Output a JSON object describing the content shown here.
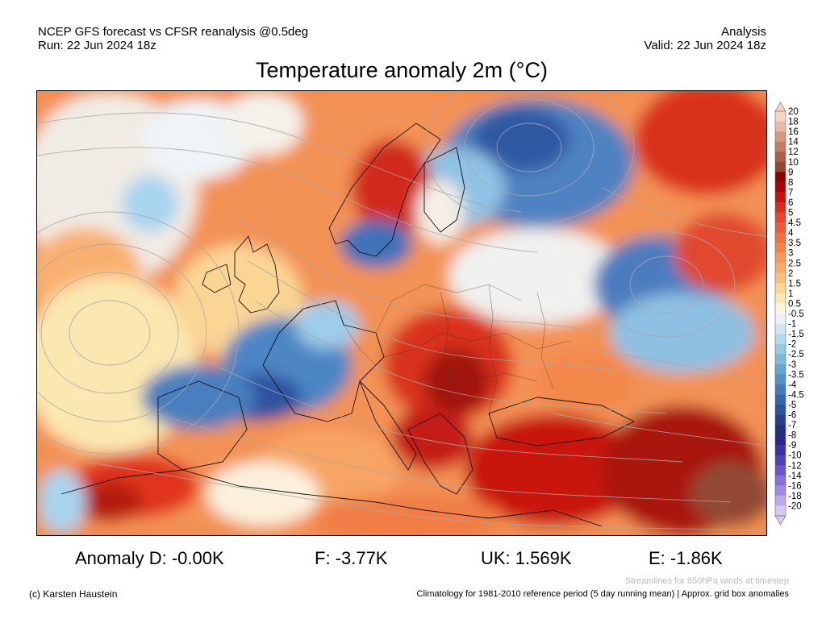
{
  "header": {
    "left_line1": "NCEP GFS forecast vs CFSR reanalysis @0.5deg",
    "left_line2": "Run: 22 Jun 2024 18z",
    "right_line1": "Analysis",
    "right_line2": "Valid: 22 Jun 2024 18z"
  },
  "title": "Temperature anomaly 2m (°C)",
  "colorbar": {
    "labels": [
      "20",
      "18",
      "16",
      "14",
      "12",
      "10",
      "9",
      "8",
      "7",
      "6",
      "5",
      "4.5",
      "4",
      "3.5",
      "3",
      "2.5",
      "2",
      "1.5",
      "1",
      "0.5",
      "-0.5",
      "-1",
      "-1.5",
      "-2",
      "-2.5",
      "-3",
      "-3.5",
      "-4",
      "-4.5",
      "-5",
      "-6",
      "-7",
      "-8",
      "-9",
      "-10",
      "-12",
      "-14",
      "-16",
      "-18",
      "-20"
    ],
    "colors": [
      "#f7d4c4",
      "#ecb8a3",
      "#d99880",
      "#c47a63",
      "#ad5f4a",
      "#954736",
      "#8f0000",
      "#ae0008",
      "#c8100f",
      "#db2a1c",
      "#e8452c",
      "#ef5b36",
      "#f26f3f",
      "#f4844a",
      "#f6995a",
      "#f8ad6c",
      "#f9c180",
      "#fad594",
      "#fbe7b0",
      "#fbf4e0",
      "#eaf2f8",
      "#cfe7f4",
      "#b3daee",
      "#96cbe5",
      "#7cb9dc",
      "#64a6d1",
      "#4f92c6",
      "#3f7dba",
      "#3368ad",
      "#2b549f",
      "#26408f",
      "#23307e",
      "#2c2590",
      "#3e2fa8",
      "#5240bd",
      "#6b55cf",
      "#8670dc",
      "#a08be6",
      "#bba8ef",
      "#d6c9f7"
    ]
  },
  "stats": {
    "d": "Anomaly D: -0.00K",
    "f": "F: -3.77K",
    "uk": "UK: 1.569K",
    "e": "E: -1.86K"
  },
  "footer": {
    "streamlines_note": "Streamlines for 850hPa winds at timestep",
    "copyright": "(c) Karsten Haustein",
    "climatology_note": "Climatology for 1981-2010 reference period (5 day running mean) | Approx. grid box anomalies"
  }
}
